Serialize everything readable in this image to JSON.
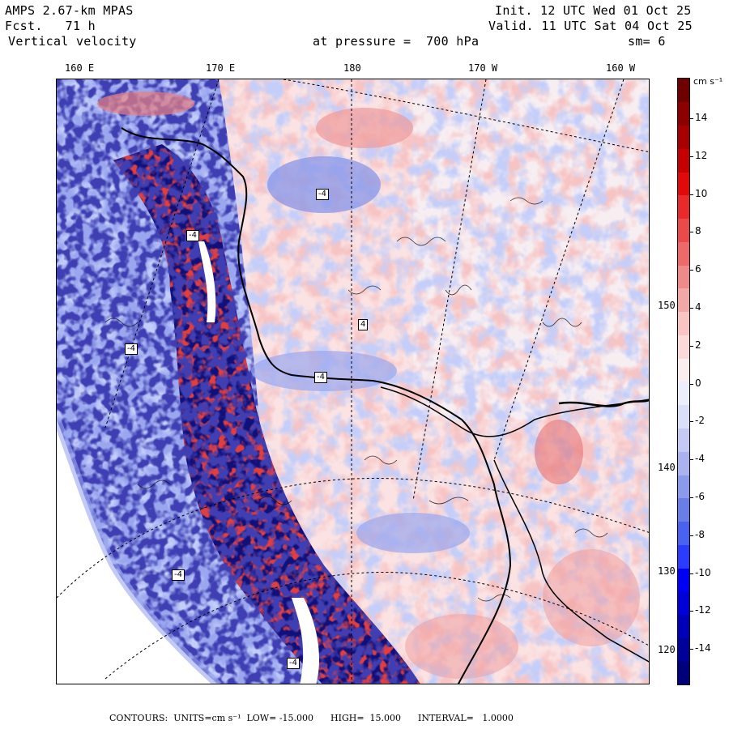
{
  "header": {
    "model": "AMPS 2.67-km MPAS",
    "forecast": "Fcst.   71 h",
    "field": "Vertical velocity",
    "init": "Init. 12 UTC Wed 01 Oct 25",
    "valid": "Valid. 11 UTC Sat 04 Oct 25",
    "level": "at pressure =  700 hPa",
    "smoothing": "sm= 6"
  },
  "longitude_labels": [
    "160 E",
    "170 E",
    "180",
    "170 W",
    "160 W"
  ],
  "latitude_labels": [
    "150 W",
    "140 W",
    "130 W",
    "120 W"
  ],
  "map_labels": [
    "-4",
    "-4",
    "-4",
    "4",
    "-4",
    "-4",
    "-4"
  ],
  "colorbar": {
    "units": "cm s⁻¹",
    "labels": [
      "14",
      "12",
      "10",
      "8",
      "6",
      "4",
      "2",
      "0",
      "-2",
      "-4",
      "-6",
      "-8",
      "-10",
      "-12",
      "-14"
    ],
    "colors": [
      "#00007a",
      "#00009a",
      "#0000b8",
      "#0000d8",
      "#0000f5",
      "#2a3cff",
      "#4a62f0",
      "#6a7ee8",
      "#8c9aec",
      "#aab2ef",
      "#c4caf3",
      "#dcdff8",
      "#eceefb",
      "#fbeeee",
      "#fbdada",
      "#f8c4c4",
      "#f3a8a8",
      "#ef8a8a",
      "#ec6a6a",
      "#ea4a4a",
      "#e82a2a",
      "#e00a0a",
      "#c40000",
      "#a80000",
      "#8c0000",
      "#700000"
    ]
  },
  "footer": "CONTOURS:  UNITS=cm s⁻¹  LOW= -15.000      HIGH=  15.000      INTERVAL=   1.0000"
}
